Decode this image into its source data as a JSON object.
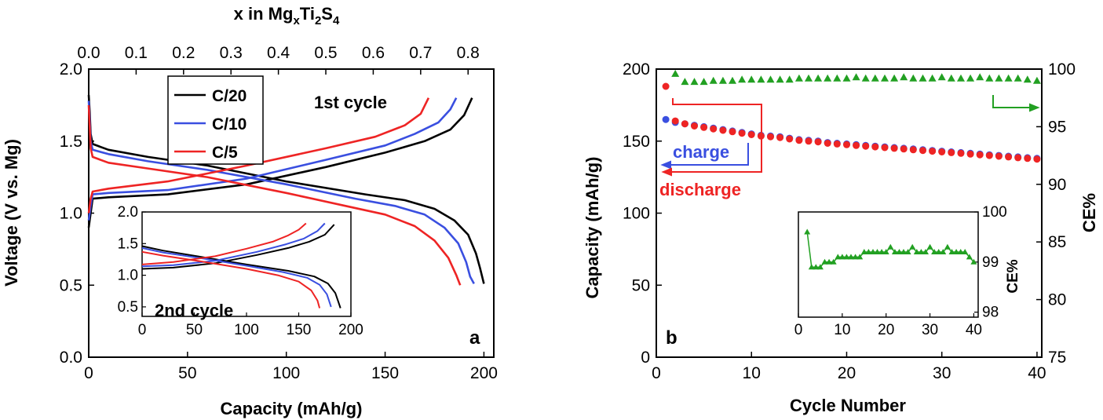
{
  "chart_data": [
    {
      "id": "a",
      "type": "line",
      "panel_label": "a",
      "xlabel": "Capacity (mAh/g)",
      "ylabel": "Voltage (V vs. Mg)",
      "top_xlabel": "x in MgxTi2S4",
      "top_xlabel_parts": {
        "base": "x in Mg",
        "sub1": "x",
        "mid": "Ti",
        "sub2": "2",
        "s": "S",
        "sub3": "4"
      },
      "xlim": [
        0,
        205
      ],
      "ylim": [
        0,
        2.0
      ],
      "xticks": [
        0,
        50,
        100,
        150,
        200
      ],
      "xtick_labels": [
        "0",
        "50",
        "100",
        "150",
        "200"
      ],
      "yticks": [
        0.0,
        0.5,
        1.0,
        1.5,
        2.0
      ],
      "ytick_labels": [
        "0.0",
        "0.5",
        "1.0",
        "1.5",
        "2.0"
      ],
      "top_xticks": [
        0.0,
        0.1,
        0.2,
        0.3,
        0.4,
        0.5,
        0.6,
        0.7,
        0.8
      ],
      "top_xtick_labels": [
        "0.0",
        "0.1",
        "0.2",
        "0.3",
        "0.4",
        "0.5",
        "0.6",
        "0.7",
        "0.8"
      ],
      "top_x_per_capacity": 0.004167,
      "annotation": "1st cycle",
      "legend": [
        "C/20",
        "C/10",
        "C/5"
      ],
      "series": [
        {
          "name": "C/20",
          "color": "#000000",
          "discharge": [
            [
              0,
              1.82
            ],
            [
              0.5,
              1.7
            ],
            [
              1,
              1.55
            ],
            [
              2,
              1.48
            ],
            [
              10,
              1.44
            ],
            [
              30,
              1.39
            ],
            [
              60,
              1.33
            ],
            [
              100,
              1.22
            ],
            [
              140,
              1.13
            ],
            [
              160,
              1.09
            ],
            [
              175,
              1.03
            ],
            [
              185,
              0.95
            ],
            [
              192,
              0.85
            ],
            [
              196,
              0.72
            ],
            [
              198,
              0.62
            ],
            [
              200,
              0.51
            ]
          ],
          "charge": [
            [
              0,
              0.9
            ],
            [
              1,
              1.0
            ],
            [
              2,
              1.1
            ],
            [
              10,
              1.11
            ],
            [
              40,
              1.13
            ],
            [
              80,
              1.2
            ],
            [
              120,
              1.32
            ],
            [
              150,
              1.42
            ],
            [
              170,
              1.5
            ],
            [
              183,
              1.58
            ],
            [
              190,
              1.68
            ],
            [
              194,
              1.8
            ]
          ]
        },
        {
          "name": "C/10",
          "color": "#3a4fe0",
          "discharge": [
            [
              0,
              1.78
            ],
            [
              0.5,
              1.65
            ],
            [
              1,
              1.5
            ],
            [
              2,
              1.44
            ],
            [
              10,
              1.41
            ],
            [
              30,
              1.36
            ],
            [
              60,
              1.3
            ],
            [
              100,
              1.2
            ],
            [
              135,
              1.1
            ],
            [
              155,
              1.05
            ],
            [
              170,
              0.99
            ],
            [
              180,
              0.9
            ],
            [
              187,
              0.79
            ],
            [
              191,
              0.66
            ],
            [
              193,
              0.56
            ],
            [
              195,
              0.51
            ]
          ],
          "charge": [
            [
              0,
              0.95
            ],
            [
              1,
              1.05
            ],
            [
              2,
              1.13
            ],
            [
              10,
              1.14
            ],
            [
              40,
              1.16
            ],
            [
              80,
              1.24
            ],
            [
              120,
              1.37
            ],
            [
              150,
              1.47
            ],
            [
              165,
              1.55
            ],
            [
              177,
              1.63
            ],
            [
              183,
              1.72
            ],
            [
              186,
              1.8
            ]
          ]
        },
        {
          "name": "C/5",
          "color": "#ee2424",
          "discharge": [
            [
              0,
              1.75
            ],
            [
              0.5,
              1.6
            ],
            [
              1,
              1.45
            ],
            [
              2,
              1.39
            ],
            [
              10,
              1.35
            ],
            [
              30,
              1.31
            ],
            [
              60,
              1.25
            ],
            [
              100,
              1.14
            ],
            [
              130,
              1.05
            ],
            [
              150,
              0.99
            ],
            [
              165,
              0.91
            ],
            [
              175,
              0.81
            ],
            [
              182,
              0.69
            ],
            [
              186,
              0.57
            ],
            [
              188,
              0.5
            ]
          ],
          "charge": [
            [
              0,
              1.0
            ],
            [
              1,
              1.1
            ],
            [
              2,
              1.15
            ],
            [
              10,
              1.17
            ],
            [
              40,
              1.22
            ],
            [
              80,
              1.33
            ],
            [
              120,
              1.45
            ],
            [
              145,
              1.53
            ],
            [
              160,
              1.61
            ],
            [
              168,
              1.69
            ],
            [
              172,
              1.8
            ]
          ]
        }
      ],
      "inset": {
        "annotation": "2nd cycle",
        "xlim": [
          0,
          200
        ],
        "ylim": [
          0.35,
          2.0
        ],
        "xticks": [
          0,
          50,
          100,
          150,
          200
        ],
        "xtick_labels": [
          "0",
          "50",
          "100",
          "150",
          "200"
        ],
        "yticks": [
          0.5,
          1.0,
          1.5,
          2.0
        ],
        "ytick_labels": [
          "0.5",
          "1.0",
          "1.5",
          "2.0"
        ],
        "series": [
          {
            "name": "C/20",
            "color": "#000000",
            "discharge": [
              [
                0,
                1.46
              ],
              [
                20,
                1.39
              ],
              [
                60,
                1.28
              ],
              [
                100,
                1.17
              ],
              [
                140,
                1.07
              ],
              [
                165,
                0.98
              ],
              [
                178,
                0.87
              ],
              [
                185,
                0.72
              ],
              [
                188,
                0.58
              ],
              [
                190,
                0.48
              ]
            ],
            "charge": [
              [
                0,
                1.1
              ],
              [
                30,
                1.12
              ],
              [
                70,
                1.19
              ],
              [
                110,
                1.32
              ],
              [
                140,
                1.43
              ],
              [
                160,
                1.53
              ],
              [
                175,
                1.64
              ],
              [
                184,
                1.8
              ]
            ]
          },
          {
            "name": "C/10",
            "color": "#3a4fe0",
            "discharge": [
              [
                0,
                1.43
              ],
              [
                20,
                1.36
              ],
              [
                60,
                1.26
              ],
              [
                100,
                1.15
              ],
              [
                135,
                1.05
              ],
              [
                158,
                0.96
              ],
              [
                170,
                0.85
              ],
              [
                177,
                0.7
              ],
              [
                181,
                0.5
              ]
            ],
            "charge": [
              [
                0,
                1.14
              ],
              [
                30,
                1.16
              ],
              [
                70,
                1.23
              ],
              [
                110,
                1.37
              ],
              [
                138,
                1.49
              ],
              [
                155,
                1.58
              ],
              [
                168,
                1.7
              ],
              [
                175,
                1.82
              ]
            ]
          },
          {
            "name": "C/5",
            "color": "#ee2424",
            "discharge": [
              [
                0,
                1.37
              ],
              [
                20,
                1.31
              ],
              [
                60,
                1.21
              ],
              [
                100,
                1.1
              ],
              [
                130,
                1.0
              ],
              [
                150,
                0.9
              ],
              [
                162,
                0.76
              ],
              [
                168,
                0.6
              ],
              [
                170,
                0.48
              ]
            ],
            "charge": [
              [
                0,
                1.17
              ],
              [
                30,
                1.21
              ],
              [
                70,
                1.3
              ],
              [
                100,
                1.42
              ],
              [
                125,
                1.53
              ],
              [
                140,
                1.63
              ],
              [
                150,
                1.72
              ],
              [
                157,
                1.82
              ]
            ]
          }
        ]
      }
    },
    {
      "id": "b",
      "type": "scatter",
      "panel_label": "b",
      "xlabel": "Cycle Number",
      "ylabel": "Capacity (mAh/g)",
      "right_ylabel": "CE%",
      "xlim": [
        0,
        40.5
      ],
      "ylim": [
        0,
        200
      ],
      "right_ylim": [
        75,
        100
      ],
      "xticks": [
        0,
        10,
        20,
        30,
        40
      ],
      "xtick_labels": [
        "0",
        "10",
        "20",
        "30",
        "40"
      ],
      "yticks": [
        0,
        50,
        100,
        150,
        200
      ],
      "ytick_labels": [
        "0",
        "50",
        "100",
        "150",
        "200"
      ],
      "right_yticks": [
        75,
        80,
        85,
        90,
        95,
        100
      ],
      "right_ytick_labels": [
        "75",
        "80",
        "85",
        "90",
        "95",
        "100"
      ],
      "annotations": {
        "charge": "charge",
        "discharge": "discharge"
      },
      "colors": {
        "charge": "#3a4fe0",
        "discharge": "#ee2424",
        "ce": "#22a022"
      },
      "series": [
        {
          "name": "charge",
          "axis": "left",
          "marker": "circle",
          "x": [
            1,
            2,
            3,
            4,
            5,
            6,
            7,
            8,
            9,
            10,
            11,
            12,
            13,
            14,
            15,
            16,
            17,
            18,
            19,
            20,
            21,
            22,
            23,
            24,
            25,
            26,
            27,
            28,
            29,
            30,
            31,
            32,
            33,
            34,
            35,
            36,
            37,
            38,
            39,
            40
          ],
          "values": [
            165,
            163,
            162,
            161,
            160,
            159,
            158,
            157,
            156,
            155,
            154,
            153.5,
            153,
            152,
            151,
            150.5,
            150,
            149,
            148.5,
            148,
            147.5,
            147,
            146.5,
            146,
            145.5,
            145,
            144.5,
            144,
            143.5,
            143,
            142.5,
            142,
            141.5,
            141,
            140.5,
            140,
            139.5,
            139,
            138.5,
            138
          ]
        },
        {
          "name": "discharge",
          "axis": "left",
          "marker": "circle",
          "x": [
            1,
            2,
            3,
            4,
            5,
            6,
            7,
            8,
            9,
            10,
            11,
            12,
            13,
            14,
            15,
            16,
            17,
            18,
            19,
            20,
            21,
            22,
            23,
            24,
            25,
            26,
            27,
            28,
            29,
            30,
            31,
            32,
            33,
            34,
            35,
            36,
            37,
            38,
            39,
            40
          ],
          "values": [
            188,
            164,
            162,
            160.5,
            159.5,
            158.5,
            157.5,
            156.5,
            155.5,
            154.5,
            153.5,
            153,
            152.5,
            151.5,
            150.5,
            150,
            149.5,
            148.5,
            148,
            147.5,
            147,
            146.5,
            146,
            145.5,
            145,
            144.5,
            144,
            143.5,
            143,
            142.5,
            142,
            141.5,
            141,
            140.5,
            140,
            139.5,
            139,
            138.5,
            138,
            137.5
          ]
        },
        {
          "name": "CE",
          "axis": "right",
          "marker": "triangle",
          "x": [
            2,
            3,
            4,
            5,
            6,
            7,
            8,
            9,
            10,
            11,
            12,
            13,
            14,
            15,
            16,
            17,
            18,
            19,
            20,
            21,
            22,
            23,
            24,
            25,
            26,
            27,
            28,
            29,
            30,
            31,
            32,
            33,
            34,
            35,
            36,
            37,
            38,
            39,
            40
          ],
          "values": [
            99.6,
            98.9,
            98.9,
            98.9,
            99.0,
            99.0,
            99.0,
            99.1,
            99.1,
            99.1,
            99.1,
            99.1,
            99.1,
            99.2,
            99.2,
            99.2,
            99.2,
            99.2,
            99.2,
            99.3,
            99.2,
            99.2,
            99.2,
            99.2,
            99.3,
            99.2,
            99.2,
            99.2,
            99.3,
            99.2,
            99.2,
            99.2,
            99.3,
            99.2,
            99.2,
            99.2,
            99.2,
            99.1,
            99.0
          ]
        }
      ],
      "inset": {
        "xlabel": "",
        "ylabel": "CE%",
        "xlim": [
          0,
          41
        ],
        "ylim": [
          97.9,
          100
        ],
        "xticks": [
          0,
          10,
          20,
          30,
          40
        ],
        "xtick_labels": [
          "0",
          "10",
          "20",
          "30",
          "40"
        ],
        "yticks": [
          98,
          99,
          100
        ],
        "ytick_labels": [
          "98",
          "99",
          "100"
        ]
      }
    }
  ]
}
